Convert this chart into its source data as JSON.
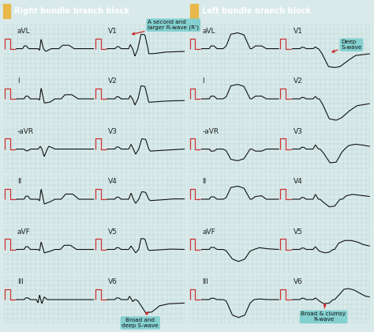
{
  "title_left": "Right bundle branch block",
  "title_right": "Left bundle branch block",
  "title_bg": "#3aacad",
  "title_icon_color": "#e8b84b",
  "bg_color": "#daeaea",
  "grid_color": "#b8d4d4",
  "line_color": "#111111",
  "cal_color": "#cc3333",
  "annotation_bg": "#7ecece",
  "annotation_text_color": "#111111",
  "leads_left": [
    "aVL",
    "I",
    "-aVR",
    "II",
    "aVF",
    "III"
  ],
  "leads_right_col": [
    "V1",
    "V2",
    "V3",
    "V4",
    "V5",
    "V6"
  ],
  "font_label": 6.5,
  "figw": 4.74,
  "figh": 4.2,
  "dpi": 100
}
